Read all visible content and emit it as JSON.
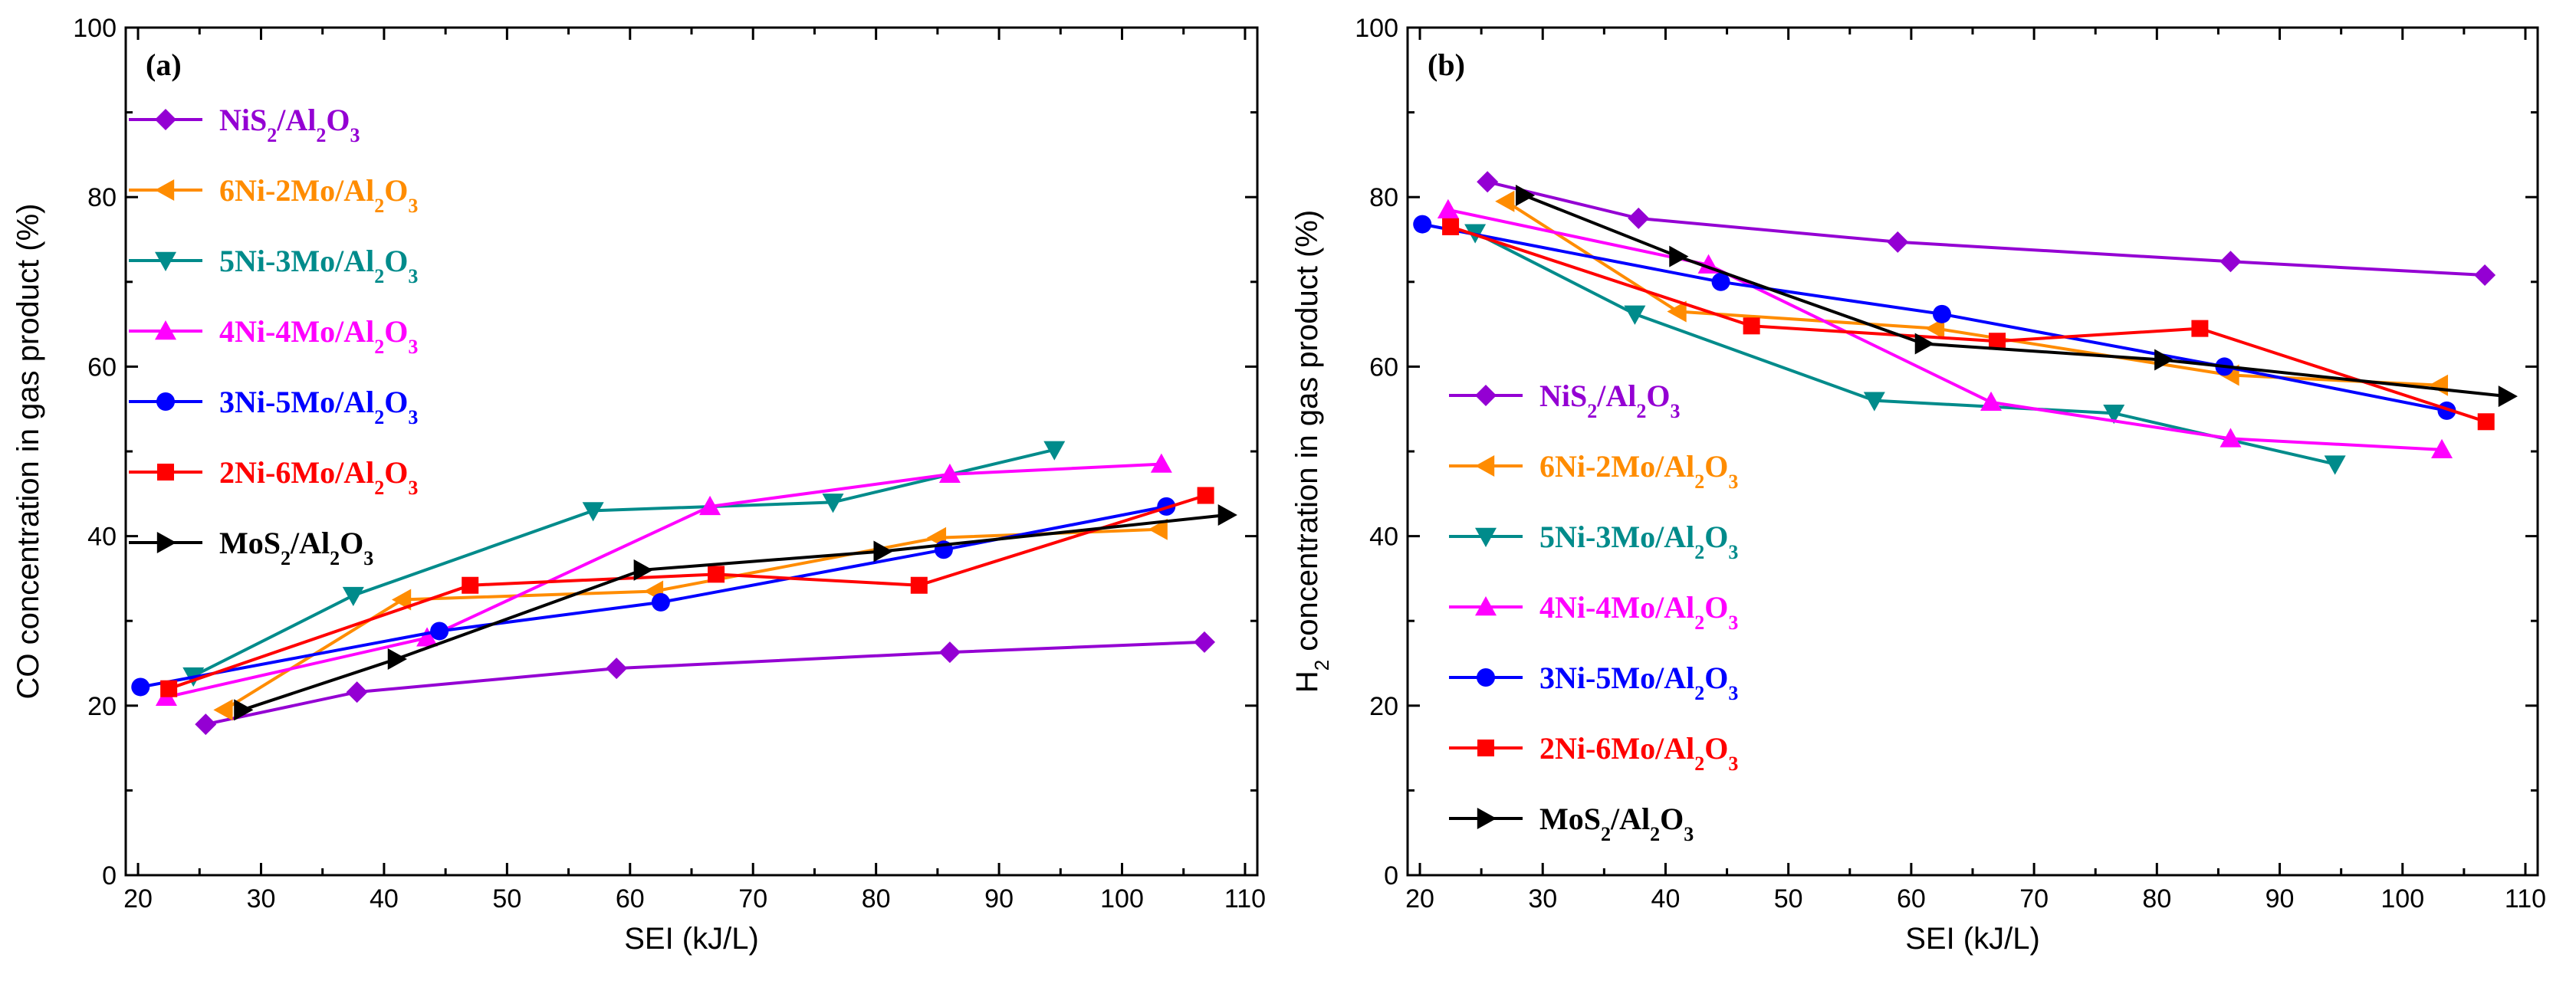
{
  "chart_data": [
    {
      "panel": "(a)",
      "type": "line",
      "xlabel": "SEI (kJ/L)",
      "ylabel": "CO concentration in gas product (%)",
      "xlim": [
        19,
        111
      ],
      "ylim": [
        0,
        100
      ],
      "xticks": [
        20,
        30,
        40,
        50,
        60,
        70,
        80,
        90,
        100,
        110
      ],
      "yticks": [
        0,
        20,
        40,
        60,
        80,
        100
      ],
      "legend_position": "top-left",
      "series": [
        {
          "key": "nis2",
          "name": "NiS2/Al2O3",
          "label_parts": [
            [
              "NiS",
              ""
            ],
            [
              "2",
              "sub"
            ],
            [
              "/Al",
              ""
            ],
            [
              "2",
              "sub"
            ],
            [
              "O",
              ""
            ],
            [
              "3",
              "sub"
            ]
          ],
          "color": "#9400D3",
          "marker": "diamond",
          "points": [
            [
              25.5,
              17.8
            ],
            [
              37.8,
              21.6
            ],
            [
              58.9,
              24.4
            ],
            [
              86.0,
              26.3
            ],
            [
              106.7,
              27.5
            ]
          ]
        },
        {
          "key": "ni6mo2",
          "name": "6Ni-2Mo/Al2O3",
          "label_parts": [
            [
              "6Ni-2Mo/Al",
              ""
            ],
            [
              "2",
              "sub"
            ],
            [
              "O",
              ""
            ],
            [
              "3",
              "sub"
            ]
          ],
          "color": "#FF8C00",
          "marker": "triangle-left",
          "points": [
            [
              27.0,
              19.5
            ],
            [
              41.5,
              32.5
            ],
            [
              62.0,
              33.5
            ],
            [
              85.0,
              39.8
            ],
            [
              103.0,
              40.8
            ]
          ]
        },
        {
          "key": "ni5mo3",
          "name": "5Ni-3Mo/Al2O3",
          "label_parts": [
            [
              "5Ni-3Mo/Al",
              ""
            ],
            [
              "2",
              "sub"
            ],
            [
              "O",
              ""
            ],
            [
              "3",
              "sub"
            ]
          ],
          "color": "#008B8B",
          "marker": "triangle-down",
          "points": [
            [
              24.5,
              23.5
            ],
            [
              37.5,
              33.0
            ],
            [
              57.0,
              43.0
            ],
            [
              76.5,
              44.0
            ],
            [
              94.5,
              50.2
            ]
          ]
        },
        {
          "key": "ni4mo4",
          "name": "4Ni-4Mo/Al2O3",
          "label_parts": [
            [
              "4Ni-4Mo/Al",
              ""
            ],
            [
              "2",
              "sub"
            ],
            [
              "O",
              ""
            ],
            [
              "3",
              "sub"
            ]
          ],
          "color": "#FF00FF",
          "marker": "triangle-up",
          "points": [
            [
              22.3,
              21.0
            ],
            [
              43.5,
              28.0
            ],
            [
              66.5,
              43.5
            ],
            [
              86.0,
              47.3
            ],
            [
              103.2,
              48.5
            ]
          ]
        },
        {
          "key": "ni3mo5",
          "name": "3Ni-5Mo/Al2O3",
          "label_parts": [
            [
              "3Ni-5Mo/Al",
              ""
            ],
            [
              "2",
              "sub"
            ],
            [
              "O",
              ""
            ],
            [
              "3",
              "sub"
            ]
          ],
          "color": "#0000FF",
          "marker": "circle",
          "points": [
            [
              20.2,
              22.2
            ],
            [
              44.5,
              28.8
            ],
            [
              62.5,
              32.2
            ],
            [
              85.5,
              38.4
            ],
            [
              103.6,
              43.5
            ]
          ]
        },
        {
          "key": "ni2mo6",
          "name": "2Ni-6Mo/Al2O3",
          "label_parts": [
            [
              "2Ni-6Mo/Al",
              ""
            ],
            [
              "2",
              "sub"
            ],
            [
              "O",
              ""
            ],
            [
              "3",
              "sub"
            ]
          ],
          "color": "#FF0000",
          "marker": "square",
          "points": [
            [
              22.5,
              22.0
            ],
            [
              47.0,
              34.2
            ],
            [
              67.0,
              35.5
            ],
            [
              83.5,
              34.2
            ],
            [
              106.8,
              44.8
            ]
          ]
        },
        {
          "key": "mos2",
          "name": "MoS2/Al2O3",
          "label_parts": [
            [
              "MoS",
              ""
            ],
            [
              "2",
              "sub"
            ],
            [
              "/Al",
              ""
            ],
            [
              "2",
              "sub"
            ],
            [
              "O",
              ""
            ],
            [
              "3",
              "sub"
            ]
          ],
          "color": "#000000",
          "marker": "triangle-right",
          "points": [
            [
              28.5,
              19.5
            ],
            [
              41.0,
              25.5
            ],
            [
              61.0,
              36.0
            ],
            [
              80.5,
              38.2
            ],
            [
              108.5,
              42.5
            ]
          ]
        }
      ]
    },
    {
      "panel": "(b)",
      "type": "line",
      "xlabel": "SEI (kJ/L)",
      "ylabel_parts": [
        [
          "H",
          ""
        ],
        [
          "2",
          "sub"
        ],
        [
          " concentration in gas product (%)",
          ""
        ]
      ],
      "ylabel": "H2 concentration in gas product (%)",
      "xlim": [
        19,
        111
      ],
      "ylim": [
        0,
        100
      ],
      "xticks": [
        20,
        30,
        40,
        50,
        60,
        70,
        80,
        90,
        100,
        110
      ],
      "yticks": [
        0,
        20,
        40,
        60,
        80,
        100
      ],
      "legend_position": "bottom-left",
      "series": [
        {
          "key": "nis2",
          "name": "NiS2/Al2O3",
          "label_parts": [
            [
              "NiS",
              ""
            ],
            [
              "2",
              "sub"
            ],
            [
              "/Al",
              ""
            ],
            [
              "2",
              "sub"
            ],
            [
              "O",
              ""
            ],
            [
              "3",
              "sub"
            ]
          ],
          "color": "#9400D3",
          "marker": "diamond",
          "points": [
            [
              25.5,
              81.8
            ],
            [
              37.8,
              77.5
            ],
            [
              58.9,
              74.7
            ],
            [
              86.0,
              72.4
            ],
            [
              106.7,
              70.8
            ]
          ]
        },
        {
          "key": "ni6mo2",
          "name": "6Ni-2Mo/Al2O3",
          "label_parts": [
            [
              "6Ni-2Mo/Al",
              ""
            ],
            [
              "2",
              "sub"
            ],
            [
              "O",
              ""
            ],
            [
              "3",
              "sub"
            ]
          ],
          "color": "#FF8C00",
          "marker": "triangle-left",
          "points": [
            [
              27.0,
              79.5
            ],
            [
              41.0,
              66.5
            ],
            [
              62.0,
              64.5
            ],
            [
              86.0,
              59.0
            ],
            [
              103.0,
              57.8
            ]
          ]
        },
        {
          "key": "ni5mo3",
          "name": "5Ni-3Mo/Al2O3",
          "label_parts": [
            [
              "5Ni-3Mo/Al",
              ""
            ],
            [
              "2",
              "sub"
            ],
            [
              "O",
              ""
            ],
            [
              "3",
              "sub"
            ]
          ],
          "color": "#008B8B",
          "marker": "triangle-down",
          "points": [
            [
              24.5,
              75.8
            ],
            [
              37.5,
              66.2
            ],
            [
              57.0,
              56.0
            ],
            [
              76.5,
              54.5
            ],
            [
              94.5,
              48.5
            ]
          ]
        },
        {
          "key": "ni4mo4",
          "name": "4Ni-4Mo/Al2O3",
          "label_parts": [
            [
              "4Ni-4Mo/Al",
              ""
            ],
            [
              "2",
              "sub"
            ],
            [
              "O",
              ""
            ],
            [
              "3",
              "sub"
            ]
          ],
          "color": "#FF00FF",
          "marker": "triangle-up",
          "points": [
            [
              22.3,
              78.5
            ],
            [
              43.5,
              72.0
            ],
            [
              66.5,
              55.8
            ],
            [
              86.0,
              51.5
            ],
            [
              103.2,
              50.2
            ]
          ]
        },
        {
          "key": "ni3mo5",
          "name": "3Ni-5Mo/Al2O3",
          "label_parts": [
            [
              "3Ni-5Mo/Al",
              ""
            ],
            [
              "2",
              "sub"
            ],
            [
              "O",
              ""
            ],
            [
              "3",
              "sub"
            ]
          ],
          "color": "#0000FF",
          "marker": "circle",
          "points": [
            [
              20.2,
              76.8
            ],
            [
              44.5,
              70.0
            ],
            [
              62.5,
              66.2
            ],
            [
              85.5,
              60.0
            ],
            [
              103.6,
              54.8
            ]
          ]
        },
        {
          "key": "ni2mo6",
          "name": "2Ni-6Mo/Al2O3",
          "label_parts": [
            [
              "2Ni-6Mo/Al",
              ""
            ],
            [
              "2",
              "sub"
            ],
            [
              "O",
              ""
            ],
            [
              "3",
              "sub"
            ]
          ],
          "color": "#FF0000",
          "marker": "square",
          "points": [
            [
              22.5,
              76.5
            ],
            [
              47.0,
              64.8
            ],
            [
              67.0,
              63.0
            ],
            [
              83.5,
              64.5
            ],
            [
              106.8,
              53.5
            ]
          ]
        },
        {
          "key": "mos2",
          "name": "MoS2/Al2O3",
          "label_parts": [
            [
              "MoS",
              ""
            ],
            [
              "2",
              "sub"
            ],
            [
              "/Al",
              ""
            ],
            [
              "2",
              "sub"
            ],
            [
              "O",
              ""
            ],
            [
              "3",
              "sub"
            ]
          ],
          "color": "#000000",
          "marker": "triangle-right",
          "points": [
            [
              28.5,
              80.2
            ],
            [
              41.0,
              73.0
            ],
            [
              61.0,
              62.7
            ],
            [
              80.5,
              60.8
            ],
            [
              108.5,
              56.5
            ]
          ]
        }
      ]
    }
  ]
}
